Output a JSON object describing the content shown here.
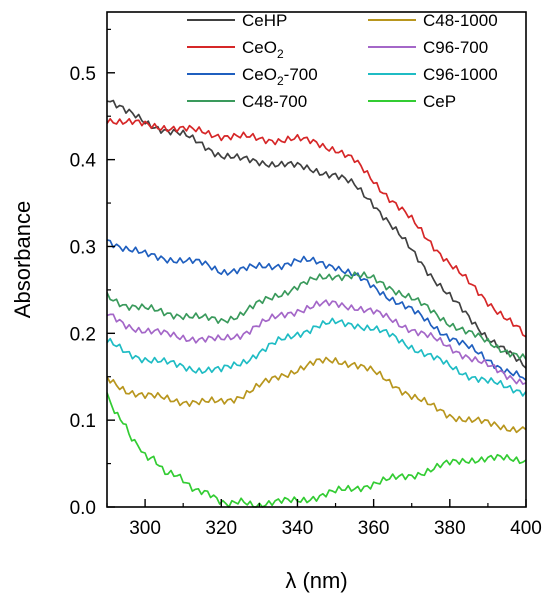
{
  "chart_data": {
    "type": "line",
    "title": "",
    "xlabel": "λ (nm)",
    "ylabel": "Absorbance",
    "xlim": [
      290,
      400
    ],
    "ylim": [
      0.0,
      0.57
    ],
    "x_ticks": [
      300,
      320,
      340,
      360,
      380,
      400
    ],
    "y_ticks": [
      0.0,
      0.1,
      0.2,
      0.3,
      0.4,
      0.5
    ],
    "x_tick_labels": [
      "300",
      "320",
      "340",
      "360",
      "380",
      "400"
    ],
    "y_tick_labels": [
      "0.0",
      "0.1",
      "0.2",
      "0.3",
      "0.4",
      "0.5"
    ],
    "grid": false,
    "legend_position": "top-right",
    "series": [
      {
        "name": "CeHP",
        "label_base": "CeHP",
        "label_sub": "",
        "label_suffix": "",
        "color": "#404040",
        "x": [
          290,
          295,
          300,
          305,
          310,
          315,
          320,
          325,
          330,
          335,
          340,
          345,
          350,
          355,
          360,
          365,
          370,
          375,
          380,
          385,
          390,
          395,
          400
        ],
        "y": [
          0.472,
          0.455,
          0.443,
          0.435,
          0.428,
          0.418,
          0.405,
          0.4,
          0.398,
          0.395,
          0.392,
          0.388,
          0.382,
          0.37,
          0.35,
          0.322,
          0.295,
          0.268,
          0.242,
          0.218,
          0.196,
          0.178,
          0.16
        ]
      },
      {
        "name": "CeO2",
        "label_base": "CeO",
        "label_sub": "2",
        "label_suffix": "",
        "color": "#d62728",
        "x": [
          290,
          295,
          300,
          305,
          310,
          315,
          320,
          325,
          330,
          335,
          340,
          345,
          350,
          355,
          360,
          365,
          370,
          375,
          380,
          385,
          390,
          395,
          400
        ],
        "y": [
          0.447,
          0.443,
          0.44,
          0.438,
          0.435,
          0.432,
          0.428,
          0.426,
          0.424,
          0.423,
          0.423,
          0.42,
          0.412,
          0.398,
          0.376,
          0.352,
          0.33,
          0.305,
          0.28,
          0.258,
          0.237,
          0.216,
          0.196
        ]
      },
      {
        "name": "CeO2-700",
        "label_base": "CeO",
        "label_sub": "2",
        "label_suffix": "-700",
        "color": "#1f5fbf",
        "x": [
          290,
          295,
          300,
          305,
          310,
          315,
          320,
          325,
          330,
          335,
          340,
          345,
          350,
          355,
          360,
          365,
          370,
          375,
          380,
          385,
          390,
          395,
          400
        ],
        "y": [
          0.308,
          0.298,
          0.29,
          0.287,
          0.284,
          0.28,
          0.272,
          0.273,
          0.276,
          0.279,
          0.283,
          0.282,
          0.278,
          0.266,
          0.253,
          0.24,
          0.226,
          0.211,
          0.196,
          0.183,
          0.17,
          0.157,
          0.146
        ]
      },
      {
        "name": "C48-700",
        "label_base": "C48-700",
        "label_sub": "",
        "label_suffix": "",
        "color": "#3a9a5c",
        "x": [
          290,
          295,
          300,
          305,
          310,
          315,
          320,
          325,
          330,
          335,
          340,
          345,
          350,
          355,
          360,
          365,
          370,
          375,
          380,
          385,
          390,
          395,
          400
        ],
        "y": [
          0.243,
          0.233,
          0.228,
          0.224,
          0.221,
          0.217,
          0.215,
          0.222,
          0.234,
          0.245,
          0.254,
          0.262,
          0.267,
          0.267,
          0.262,
          0.252,
          0.24,
          0.226,
          0.212,
          0.2,
          0.19,
          0.18,
          0.17
        ]
      },
      {
        "name": "C48-1000",
        "label_base": "C48-1000",
        "label_sub": "",
        "label_suffix": "",
        "color": "#b8961e",
        "x": [
          290,
          295,
          300,
          305,
          310,
          315,
          320,
          325,
          330,
          335,
          340,
          345,
          350,
          355,
          360,
          365,
          370,
          375,
          380,
          385,
          390,
          395,
          400
        ],
        "y": [
          0.147,
          0.135,
          0.128,
          0.125,
          0.122,
          0.12,
          0.121,
          0.128,
          0.139,
          0.15,
          0.159,
          0.166,
          0.169,
          0.165,
          0.155,
          0.142,
          0.128,
          0.116,
          0.106,
          0.1,
          0.096,
          0.092,
          0.089
        ]
      },
      {
        "name": "C96-700",
        "label_base": "C96-700",
        "label_sub": "",
        "label_suffix": "",
        "color": "#a467c8",
        "x": [
          290,
          295,
          300,
          305,
          310,
          315,
          320,
          325,
          330,
          335,
          340,
          345,
          350,
          355,
          360,
          365,
          370,
          375,
          380,
          385,
          390,
          395,
          400
        ],
        "y": [
          0.221,
          0.21,
          0.203,
          0.199,
          0.196,
          0.193,
          0.192,
          0.199,
          0.21,
          0.219,
          0.227,
          0.232,
          0.234,
          0.231,
          0.224,
          0.215,
          0.205,
          0.195,
          0.184,
          0.173,
          0.162,
          0.152,
          0.143
        ]
      },
      {
        "name": "C96-1000",
        "label_base": "C96-1000",
        "label_sub": "",
        "label_suffix": "",
        "color": "#1fbcc4",
        "x": [
          290,
          295,
          300,
          305,
          310,
          315,
          320,
          325,
          330,
          335,
          340,
          345,
          350,
          355,
          360,
          365,
          370,
          375,
          380,
          385,
          390,
          395,
          400
        ],
        "y": [
          0.19,
          0.178,
          0.171,
          0.166,
          0.162,
          0.158,
          0.157,
          0.166,
          0.178,
          0.19,
          0.2,
          0.208,
          0.212,
          0.211,
          0.205,
          0.196,
          0.185,
          0.173,
          0.162,
          0.152,
          0.144,
          0.138,
          0.133
        ]
      },
      {
        "name": "CeP",
        "label_base": "CeP",
        "label_sub": "",
        "label_suffix": "",
        "color": "#33cc33",
        "x": [
          290,
          292,
          295,
          298,
          300,
          303,
          306,
          310,
          314,
          318,
          322,
          326,
          330,
          335,
          340,
          345,
          350,
          355,
          360,
          365,
          370,
          375,
          380,
          385,
          390,
          395,
          400
        ],
        "y": [
          0.13,
          0.112,
          0.09,
          0.072,
          0.062,
          0.05,
          0.04,
          0.03,
          0.02,
          0.01,
          0.005,
          0.004,
          0.003,
          0.005,
          0.008,
          0.012,
          0.017,
          0.022,
          0.027,
          0.032,
          0.037,
          0.043,
          0.05,
          0.055,
          0.056,
          0.055,
          0.054
        ]
      }
    ]
  }
}
